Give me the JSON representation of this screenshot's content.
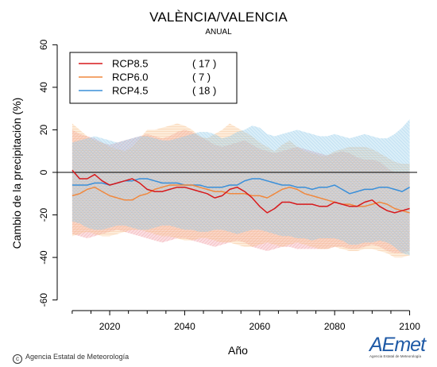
{
  "header": {
    "title": "VALÈNCIA/VALENCIA",
    "subtitle": "ANUAL"
  },
  "footer": {
    "credit": "Agencia Estatal de Meteorología",
    "logo_text": "AEmet",
    "logo_sub": "Agencia Estatal de Meteorología"
  },
  "chart_data": {
    "type": "line",
    "xlabel": "Año",
    "ylabel": "Cambio de la precipitación (%)",
    "xlim": [
      2006,
      2102
    ],
    "ylim": [
      -65,
      62
    ],
    "xticks": [
      2020,
      2040,
      2060,
      2080,
      2100
    ],
    "yticks": [
      -60,
      -40,
      -20,
      0,
      20,
      40,
      60
    ],
    "grid": false,
    "legend_position": "top-left",
    "reference_line": 0,
    "x": [
      2010,
      2012,
      2014,
      2016,
      2018,
      2020,
      2022,
      2024,
      2026,
      2028,
      2030,
      2032,
      2034,
      2036,
      2038,
      2040,
      2042,
      2044,
      2046,
      2048,
      2050,
      2052,
      2054,
      2056,
      2058,
      2060,
      2062,
      2064,
      2066,
      2068,
      2070,
      2072,
      2074,
      2076,
      2078,
      2080,
      2082,
      2084,
      2086,
      2088,
      2090,
      2092,
      2094,
      2096,
      2098,
      2100
    ],
    "series": [
      {
        "name": "RCP8.5",
        "count": "( 17 )",
        "color": "#d7191c",
        "values": [
          1,
          -3,
          -3,
          -1,
          -4,
          -6,
          -5,
          -4,
          -3,
          -5,
          -8,
          -9,
          -9,
          -8,
          -7,
          -7,
          -8,
          -9,
          -10,
          -12,
          -11,
          -8,
          -7,
          -9,
          -12,
          -16,
          -19,
          -17,
          -14,
          -14,
          -15,
          -15,
          -15,
          -16,
          -16,
          -14,
          -15,
          -16,
          -16,
          -14,
          -13,
          -16,
          -18,
          -19,
          -18,
          -17
        ],
        "upper": [
          20,
          18,
          17,
          16,
          14,
          13,
          14,
          15,
          16,
          17,
          18,
          17,
          16,
          17,
          19,
          20,
          19,
          17,
          15,
          13,
          12,
          13,
          14,
          15,
          13,
          11,
          10,
          9,
          10,
          11,
          12,
          11,
          10,
          9,
          8,
          9,
          10,
          9,
          7,
          6,
          6,
          5,
          2,
          0,
          0,
          0
        ],
        "lower": [
          -29,
          -30,
          -31,
          -30,
          -29,
          -28,
          -27,
          -28,
          -29,
          -30,
          -31,
          -32,
          -33,
          -32,
          -31,
          -31,
          -32,
          -33,
          -34,
          -35,
          -34,
          -33,
          -32,
          -33,
          -35,
          -36,
          -37,
          -36,
          -35,
          -35,
          -36,
          -36,
          -36,
          -36,
          -36,
          -35,
          -35,
          -36,
          -36,
          -35,
          -34,
          -35,
          -37,
          -38,
          -38,
          -37
        ]
      },
      {
        "name": "RCP6.0",
        "count": "(   7 )",
        "color": "#f0883e",
        "values": [
          -11,
          -10,
          -8,
          -7,
          -9,
          -11,
          -12,
          -13,
          -13,
          -11,
          -10,
          -8,
          -7,
          -6,
          -6,
          -6,
          -6,
          -7,
          -8,
          -9,
          -9,
          -10,
          -10,
          -10,
          -11,
          -11,
          -12,
          -10,
          -8,
          -7,
          -8,
          -10,
          -11,
          -12,
          -13,
          -14,
          -15,
          -15,
          -16,
          -16,
          -15,
          -14,
          -15,
          -17,
          -18,
          -19
        ],
        "upper": [
          23,
          20,
          17,
          15,
          14,
          12,
          11,
          10,
          12,
          16,
          20,
          20,
          21,
          22,
          23,
          22,
          20,
          17,
          16,
          18,
          20,
          23,
          21,
          19,
          17,
          14,
          12,
          10,
          13,
          15,
          12,
          10,
          9,
          8,
          8,
          10,
          11,
          12,
          12,
          12,
          11,
          9,
          7,
          5,
          4,
          4
        ],
        "lower": [
          -30,
          -29,
          -28,
          -29,
          -30,
          -30,
          -29,
          -28,
          -27,
          -27,
          -28,
          -29,
          -30,
          -30,
          -31,
          -32,
          -32,
          -31,
          -31,
          -32,
          -33,
          -33,
          -34,
          -35,
          -35,
          -34,
          -33,
          -34,
          -35,
          -34,
          -33,
          -34,
          -35,
          -36,
          -36,
          -35,
          -36,
          -37,
          -37,
          -36,
          -36,
          -37,
          -38,
          -40,
          -40,
          -39
        ]
      },
      {
        "name": "RCP4.5",
        "count": "( 18 )",
        "color": "#3a8fd9",
        "values": [
          -6,
          -6,
          -6,
          -5,
          -5,
          -6,
          -5,
          -4,
          -4,
          -3,
          -3,
          -4,
          -5,
          -5,
          -5,
          -6,
          -6,
          -6,
          -7,
          -7,
          -7,
          -6,
          -6,
          -4,
          -3,
          -3,
          -4,
          -5,
          -6,
          -6,
          -7,
          -7,
          -8,
          -7,
          -7,
          -6,
          -8,
          -10,
          -9,
          -8,
          -8,
          -7,
          -7,
          -8,
          -9,
          -7
        ],
        "upper": [
          14,
          15,
          16,
          17,
          16,
          15,
          14,
          15,
          16,
          17,
          17,
          16,
          15,
          15,
          16,
          17,
          18,
          19,
          19,
          18,
          16,
          17,
          19,
          20,
          22,
          21,
          18,
          17,
          18,
          19,
          20,
          19,
          18,
          17,
          17,
          18,
          17,
          16,
          17,
          18,
          17,
          16,
          16,
          18,
          21,
          25
        ],
        "lower": [
          -23,
          -24,
          -26,
          -27,
          -27,
          -26,
          -25,
          -25,
          -26,
          -27,
          -27,
          -26,
          -25,
          -25,
          -26,
          -27,
          -27,
          -28,
          -28,
          -27,
          -27,
          -28,
          -29,
          -28,
          -27,
          -27,
          -28,
          -29,
          -30,
          -30,
          -31,
          -31,
          -32,
          -31,
          -31,
          -31,
          -32,
          -34,
          -34,
          -33,
          -33,
          -32,
          -33,
          -35,
          -38,
          -39
        ]
      }
    ]
  }
}
